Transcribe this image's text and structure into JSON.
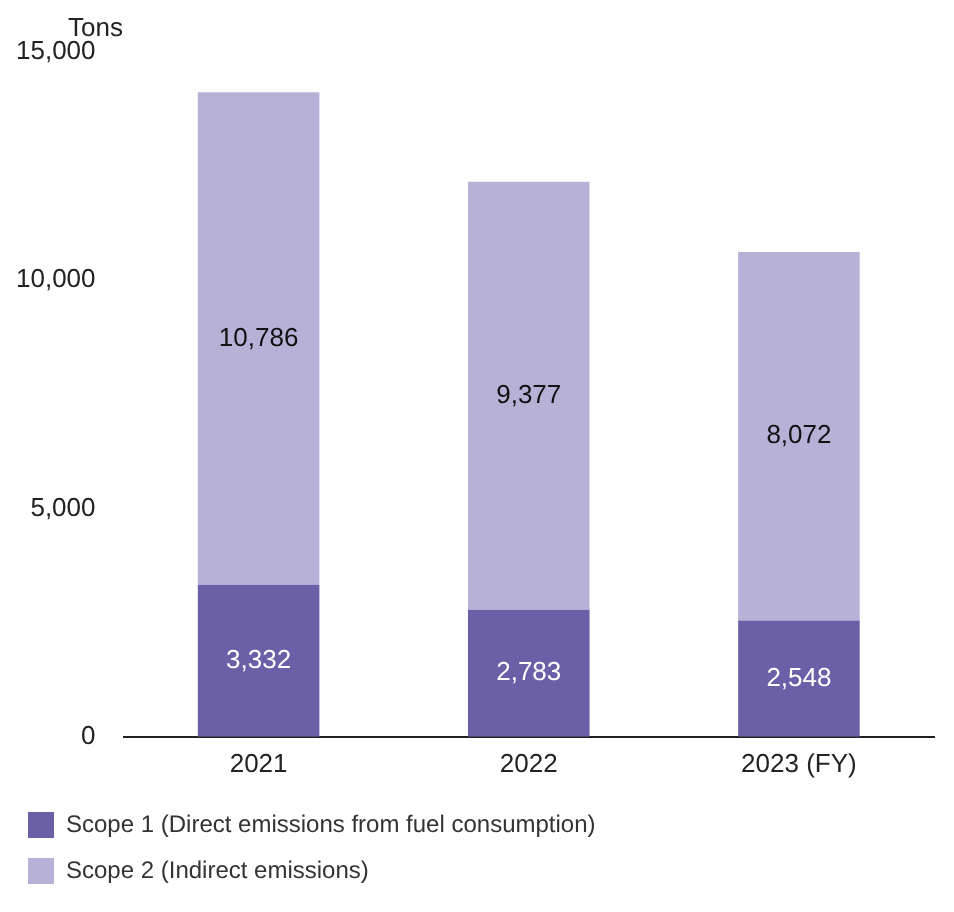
{
  "chart_data": {
    "type": "bar",
    "ylabel": "Tons",
    "categories": [
      "2021",
      "2022",
      "2023 (FY)"
    ],
    "stacked": true,
    "series": [
      {
        "name": "Scope 1 (Direct emissions from fuel consumption)",
        "color": "#6b5fa8",
        "values": [
          3332,
          2783,
          2548
        ],
        "value_labels": [
          "3,332",
          "2,783",
          "2,548"
        ]
      },
      {
        "name": "Scope 2 (Indirect emissions)",
        "color": "#b7b1d7",
        "values": [
          10786,
          9377,
          8072
        ],
        "value_labels": [
          "10,786",
          "9,377",
          "8,072"
        ]
      }
    ],
    "ylim": [
      0,
      15000
    ],
    "yticks": [
      {
        "value": 0,
        "label": "0"
      },
      {
        "value": 5000,
        "label": "5,000"
      },
      {
        "value": 10000,
        "label": "10,000"
      },
      {
        "value": 15000,
        "label": "15,000"
      }
    ],
    "grid": false,
    "legend": "bottom"
  }
}
